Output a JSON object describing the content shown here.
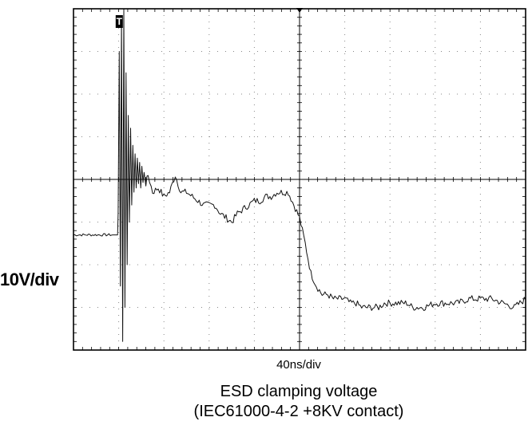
{
  "chart_data": {
    "type": "line",
    "title": "ESD clamping voltage",
    "subtitle": "(IEC61000-4-2 +8KV contact)",
    "xlabel": "40ns/div",
    "ylabel": "10V/div",
    "xlim": [
      0,
      400
    ],
    "ylim": [
      -40,
      40
    ],
    "grid": true,
    "trigger_marker": "T",
    "series": [
      {
        "x": [
          0,
          35,
          39,
          39.5,
          40.5,
          41.5,
          42.5,
          43.5,
          44.5,
          45.5,
          46.5,
          47.5,
          48.5,
          49.5,
          50.5,
          51.5,
          52.5,
          53.5,
          54.5,
          55.5,
          56.5,
          57.5,
          58.5,
          59.5,
          60.5,
          61.5,
          62.5,
          64,
          66,
          70,
          75,
          80,
          85,
          90,
          95,
          100,
          105,
          110,
          115,
          120,
          125,
          130,
          135,
          140,
          145,
          150,
          155,
          160,
          165,
          170,
          175,
          180,
          185,
          190,
          195,
          200,
          205,
          210,
          215,
          220,
          225,
          230,
          235,
          240,
          245,
          250,
          255,
          260,
          265,
          270,
          275,
          280,
          285,
          290,
          295,
          300,
          305,
          310,
          320,
          330,
          340,
          350,
          360,
          370,
          380,
          390,
          400
        ],
        "y": [
          -13,
          -13,
          -13,
          -8,
          30,
          -25,
          38,
          -38,
          40,
          -30,
          25,
          -20,
          15,
          -10,
          12,
          -6,
          8,
          -3,
          6,
          -2,
          5,
          -1,
          4,
          -2,
          3,
          -1,
          2,
          -1,
          1,
          -3,
          -2,
          -4,
          -3,
          1,
          -3,
          -3,
          -4,
          -5,
          -6,
          -6,
          -6,
          -8,
          -9,
          -10,
          -8,
          -7,
          -6,
          -5,
          -5,
          -4,
          -4,
          -3,
          -3,
          -3,
          -6,
          -9,
          -15,
          -22,
          -25,
          -27,
          -27,
          -28,
          -28,
          -28,
          -29,
          -29,
          -30,
          -30,
          -30,
          -30,
          -29,
          -29,
          -29,
          -29,
          -29,
          -30,
          -30,
          -30,
          -29,
          -29,
          -29,
          -28,
          -28,
          -28,
          -29,
          -30,
          -28
        ]
      }
    ]
  }
}
